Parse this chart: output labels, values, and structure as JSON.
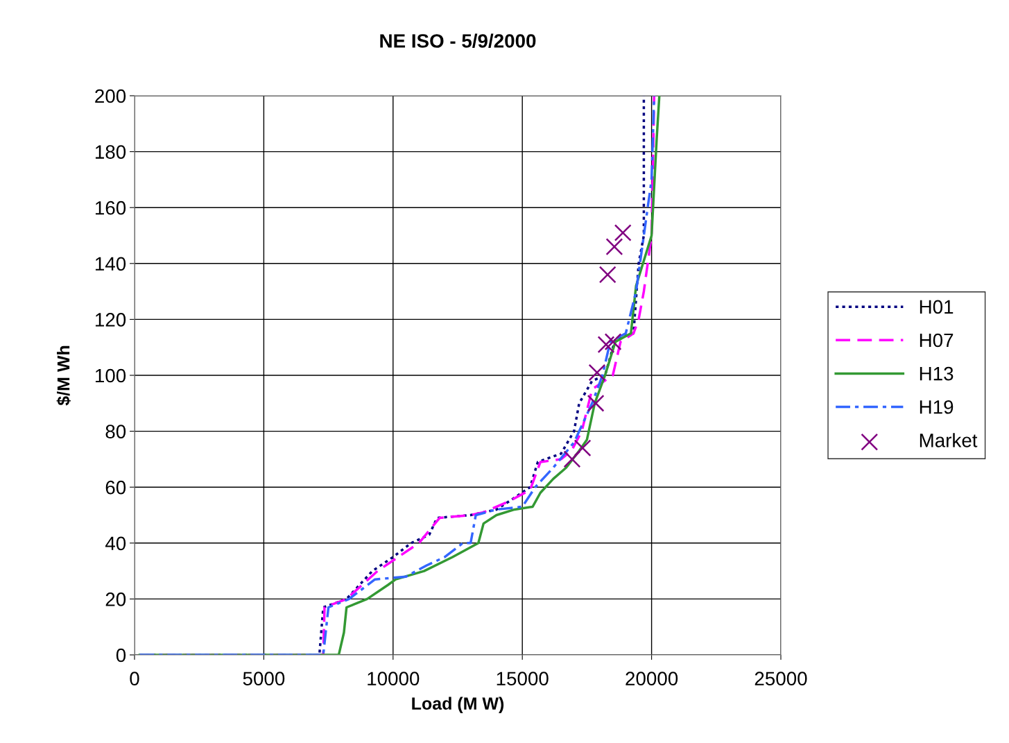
{
  "chart_data": {
    "type": "line",
    "title": "NE ISO - 5/9/2000",
    "xlabel": "Load (M W)",
    "ylabel": "$/M Wh",
    "xlim": [
      0,
      25000
    ],
    "xticks": [
      0,
      5000,
      10000,
      15000,
      20000,
      25000
    ],
    "ylim": [
      0,
      200
    ],
    "yticks": [
      0,
      20,
      40,
      60,
      80,
      100,
      120,
      140,
      160,
      180,
      200
    ],
    "grid": true,
    "legend": "right",
    "marker": "none",
    "series": [
      {
        "name": "H01",
        "color": "#000080",
        "line_style": "dotted",
        "x": [
          200,
          7150,
          7300,
          8200,
          9200,
          10000,
          10700,
          11400,
          11700,
          13000,
          14000,
          14500,
          15300,
          15600,
          16500,
          17000,
          17200,
          17700,
          18200,
          18600,
          19300,
          19500,
          19700,
          19700
        ],
        "values": [
          0,
          0,
          17,
          20,
          30,
          35,
          40,
          43,
          49,
          50,
          52,
          55,
          60,
          69,
          72,
          80,
          90,
          98,
          100,
          113,
          115,
          140,
          150,
          200
        ]
      },
      {
        "name": "H07",
        "color": "#ff00ff",
        "line_style": "dashed",
        "x": [
          200,
          7300,
          7350,
          8200,
          9400,
          10200,
          11000,
          11800,
          13000,
          13500,
          14500,
          15300,
          15700,
          16500,
          16900,
          17300,
          17700,
          18500,
          18800,
          19300,
          19500,
          19700,
          20000,
          20100
        ],
        "values": [
          0,
          0,
          17,
          20,
          30,
          35,
          40,
          49,
          50,
          51,
          55,
          59,
          69,
          70,
          73,
          80,
          95,
          100,
          112,
          115,
          120,
          130,
          150,
          200
        ]
      },
      {
        "name": "H13",
        "color": "#339933",
        "line_style": "solid",
        "x": [
          200,
          7900,
          8100,
          8200,
          9000,
          9800,
          10100,
          11200,
          12300,
          13300,
          13500,
          14000,
          14700,
          15400,
          15700,
          16200,
          16700,
          17200,
          17500,
          17800,
          18200,
          18600,
          19200,
          19400,
          20000,
          20200,
          20300
        ],
        "values": [
          0,
          0,
          8,
          17,
          20,
          25,
          27,
          30,
          35,
          40,
          47,
          50,
          52,
          53,
          58,
          63,
          67,
          73,
          77,
          90,
          100,
          112,
          115,
          132,
          150,
          185,
          200
        ]
      },
      {
        "name": "H19",
        "color": "#3366ff",
        "line_style": "dashdot",
        "x": [
          200,
          7300,
          7500,
          8300,
          9300,
          10500,
          11300,
          12000,
          12700,
          13000,
          13200,
          14000,
          15000,
          15500,
          16200,
          17000,
          17700,
          18100,
          18400,
          19000,
          19400,
          19700,
          20000,
          20100
        ],
        "values": [
          0,
          0,
          17,
          20,
          27,
          28,
          32,
          35,
          40,
          40,
          50,
          52,
          53,
          60,
          67,
          76,
          90,
          100,
          112,
          115,
          130,
          150,
          170,
          200
        ]
      },
      {
        "name": "Market",
        "type": "scatter",
        "marker": "cross",
        "color": "#800080",
        "x": [
          16925,
          17330,
          17840,
          17890,
          18240,
          18510,
          18300,
          18560,
          18890
        ],
        "values": [
          70,
          74,
          90,
          101,
          111,
          112,
          136,
          146,
          151
        ]
      }
    ]
  }
}
